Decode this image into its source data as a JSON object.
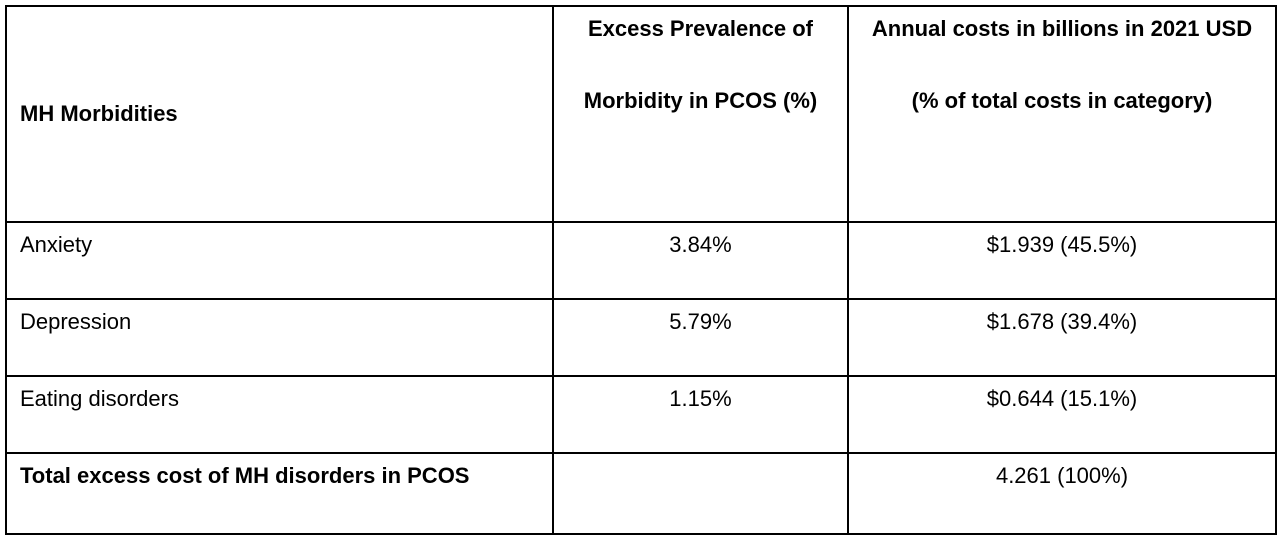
{
  "table": {
    "headers": {
      "morbidities": "MH Morbidities",
      "prevalence": "Excess Prevalence of Morbidity in PCOS (%)",
      "costs": "Annual costs in billions in 2021 USD (% of total costs in category)"
    },
    "rows": [
      {
        "morbidity": "Anxiety",
        "prevalence": "3.84%",
        "cost": "$1.939 (45.5%)"
      },
      {
        "morbidity": "Depression",
        "prevalence": "5.79%",
        "cost": "$1.678 (39.4%)"
      },
      {
        "morbidity": "Eating disorders",
        "prevalence": "1.15%",
        "cost": "$0.644 (15.1%)"
      }
    ],
    "total": {
      "label": "Total excess cost of MH disorders in PCOS",
      "prevalence": "",
      "cost": "4.261 (100%)"
    }
  }
}
